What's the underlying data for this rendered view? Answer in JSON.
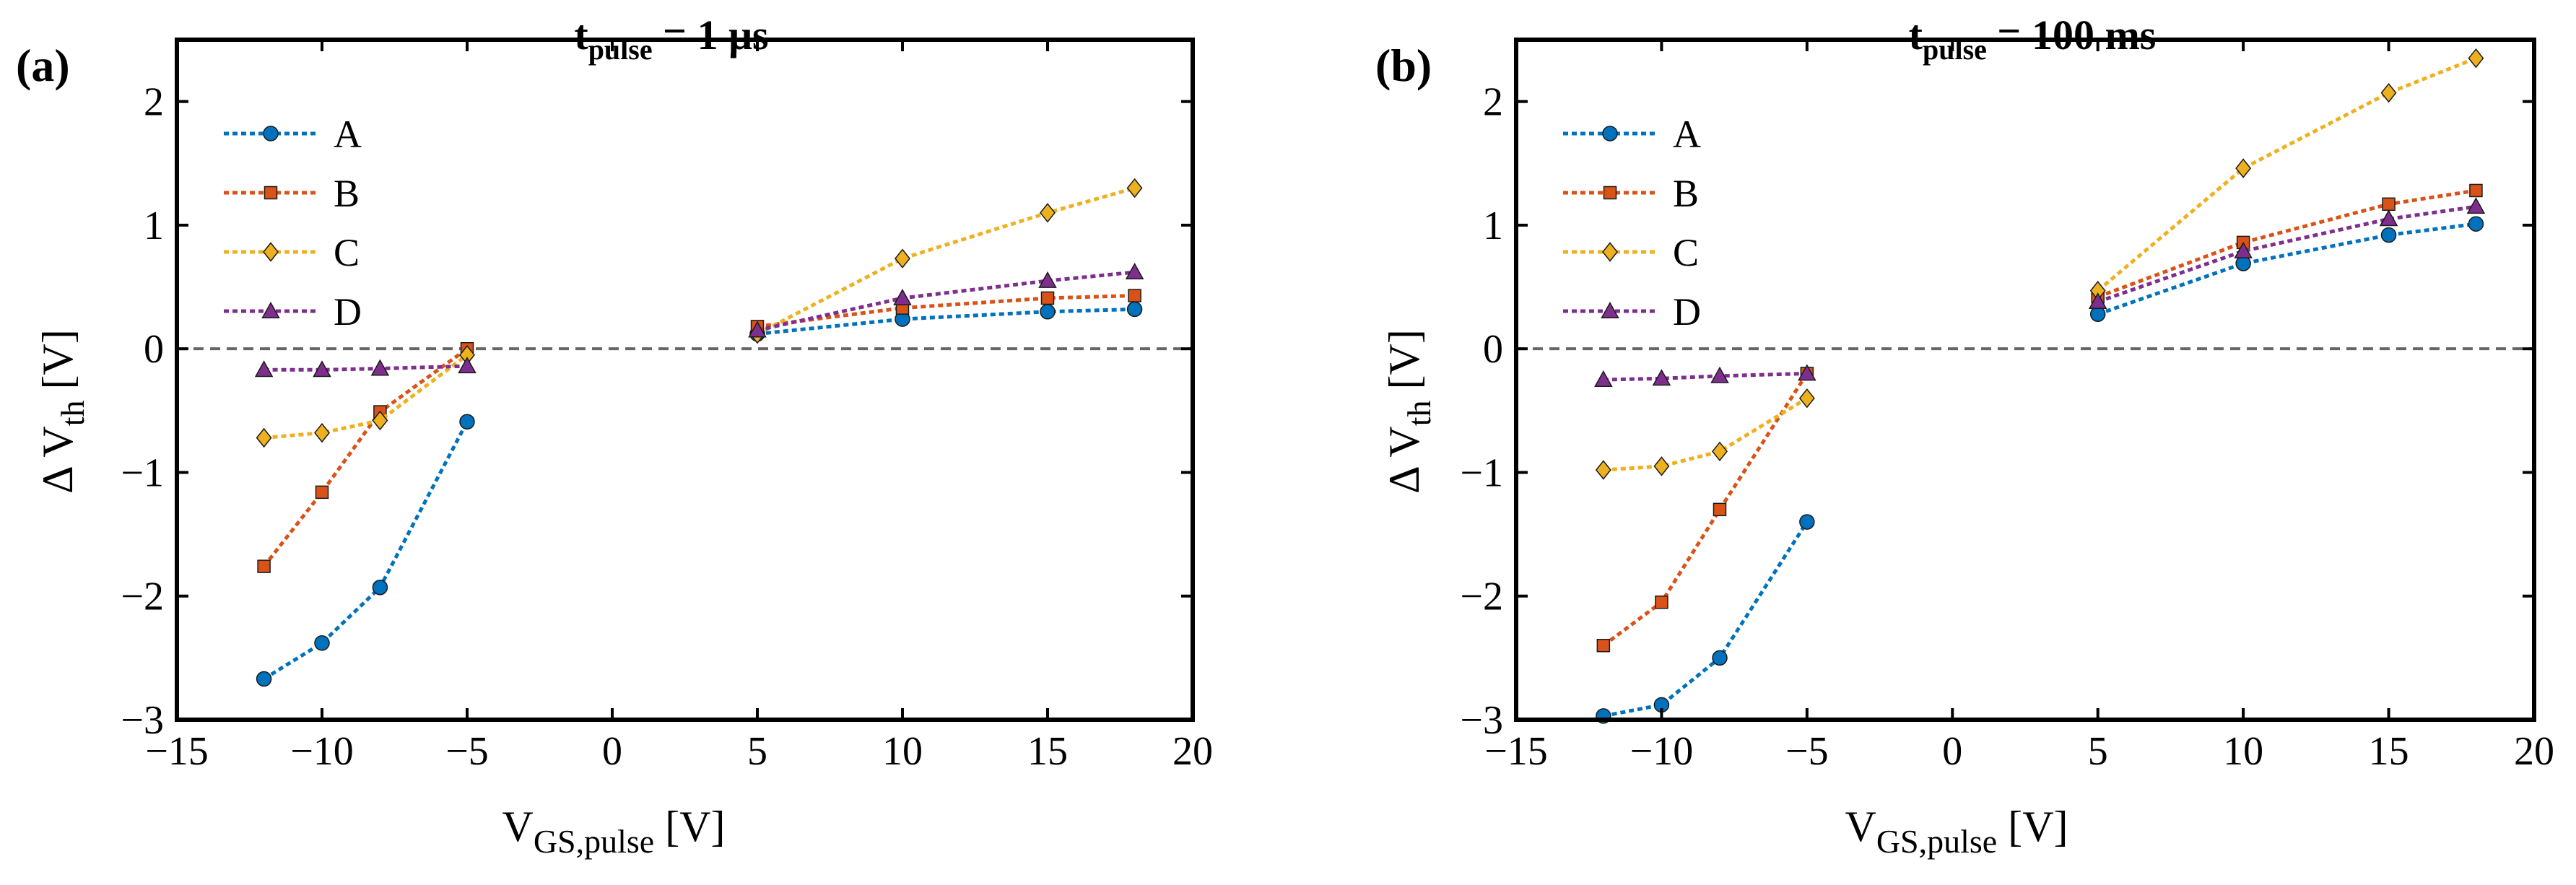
{
  "figure": {
    "panels": [
      {
        "letter": "(a)",
        "title_main": "t",
        "title_sub": "pulse",
        "title_rest": " = 1 μs",
        "xlabel_main": "V",
        "xlabel_sub": "GS,pulse",
        "xlabel_rest": " [V]",
        "ylabel_main": "Δ V",
        "ylabel_sub": "th",
        "ylabel_rest": " [V]"
      },
      {
        "letter": "(b)",
        "title_main": "t",
        "title_sub": "pulse",
        "title_rest": " = 100 ms",
        "xlabel_main": "V",
        "xlabel_sub": "GS,pulse",
        "xlabel_rest": " [V]",
        "ylabel_main": "Δ V",
        "ylabel_sub": "th",
        "ylabel_rest": " [V]"
      }
    ]
  },
  "chart_data": [
    {
      "type": "line",
      "title": "t_pulse = 1 μs",
      "xlabel": "V_GS,pulse [V]",
      "ylabel": "Δ V_th [V]",
      "xlim": [
        -15,
        20
      ],
      "ylim": [
        -3,
        2.5
      ],
      "xticks": [
        -15,
        -10,
        -5,
        0,
        5,
        10,
        15,
        20
      ],
      "yticks": [
        -3,
        -2,
        -1,
        0,
        1,
        2
      ],
      "reference_line": {
        "y": 0,
        "style": "dashed",
        "color": "#666666"
      },
      "legend_position": "top-left",
      "grid": false,
      "series": [
        {
          "name": "A",
          "color": "#0072BD",
          "marker": "circle",
          "segments": [
            {
              "x": [
                -12,
                -10,
                -8,
                -5
              ],
              "y": [
                -2.67,
                -2.38,
                -1.93,
                -0.59
              ]
            },
            {
              "x": [
                5,
                10,
                15,
                18
              ],
              "y": [
                0.12,
                0.24,
                0.3,
                0.32
              ]
            }
          ]
        },
        {
          "name": "B",
          "color": "#D95319",
          "marker": "square",
          "segments": [
            {
              "x": [
                -12,
                -10,
                -8,
                -5
              ],
              "y": [
                -1.76,
                -1.16,
                -0.51,
                0.0
              ]
            },
            {
              "x": [
                5,
                10,
                15,
                18
              ],
              "y": [
                0.18,
                0.33,
                0.41,
                0.43
              ]
            }
          ]
        },
        {
          "name": "C",
          "color": "#EDB120",
          "marker": "diamond",
          "segments": [
            {
              "x": [
                -12,
                -10,
                -8,
                -5
              ],
              "y": [
                -0.72,
                -0.68,
                -0.58,
                -0.05
              ]
            },
            {
              "x": [
                5,
                10,
                15,
                18
              ],
              "y": [
                0.12,
                0.73,
                1.1,
                1.3
              ]
            }
          ]
        },
        {
          "name": "D",
          "color": "#7E2F8E",
          "marker": "triangle",
          "segments": [
            {
              "x": [
                -12,
                -10,
                -8,
                -5
              ],
              "y": [
                -0.17,
                -0.17,
                -0.16,
                -0.14
              ]
            },
            {
              "x": [
                5,
                10,
                15,
                18
              ],
              "y": [
                0.15,
                0.41,
                0.55,
                0.62
              ]
            }
          ]
        }
      ]
    },
    {
      "type": "line",
      "title": "t_pulse = 100 ms",
      "xlabel": "V_GS,pulse [V]",
      "ylabel": "Δ V_th [V]",
      "xlim": [
        -15,
        20
      ],
      "ylim": [
        -3,
        2.5
      ],
      "xticks": [
        -15,
        -10,
        -5,
        0,
        5,
        10,
        15,
        20
      ],
      "yticks": [
        -3,
        -2,
        -1,
        0,
        1,
        2
      ],
      "reference_line": {
        "y": 0,
        "style": "dashed",
        "color": "#666666"
      },
      "legend_position": "top-left",
      "grid": false,
      "series": [
        {
          "name": "A",
          "color": "#0072BD",
          "marker": "circle",
          "segments": [
            {
              "x": [
                -12,
                -10,
                -8,
                -5
              ],
              "y": [
                -2.97,
                -2.88,
                -2.5,
                -1.4
              ]
            },
            {
              "x": [
                5,
                10,
                15,
                18
              ],
              "y": [
                0.28,
                0.69,
                0.92,
                1.01
              ]
            }
          ]
        },
        {
          "name": "B",
          "color": "#D95319",
          "marker": "square",
          "segments": [
            {
              "x": [
                -12,
                -10,
                -8,
                -5
              ],
              "y": [
                -2.4,
                -2.05,
                -1.3,
                -0.2
              ]
            },
            {
              "x": [
                5,
                10,
                15,
                18
              ],
              "y": [
                0.42,
                0.86,
                1.17,
                1.28
              ]
            }
          ]
        },
        {
          "name": "C",
          "color": "#EDB120",
          "marker": "diamond",
          "segments": [
            {
              "x": [
                -12,
                -10,
                -8,
                -5
              ],
              "y": [
                -0.98,
                -0.95,
                -0.83,
                -0.4
              ]
            },
            {
              "x": [
                5,
                10,
                15,
                18
              ],
              "y": [
                0.47,
                1.46,
                2.07,
                2.35
              ]
            }
          ]
        },
        {
          "name": "D",
          "color": "#7E2F8E",
          "marker": "triangle",
          "segments": [
            {
              "x": [
                -12,
                -10,
                -8,
                -5
              ],
              "y": [
                -0.25,
                -0.24,
                -0.22,
                -0.2
              ]
            },
            {
              "x": [
                5,
                10,
                15,
                18
              ],
              "y": [
                0.38,
                0.79,
                1.05,
                1.15
              ]
            }
          ]
        }
      ]
    }
  ]
}
